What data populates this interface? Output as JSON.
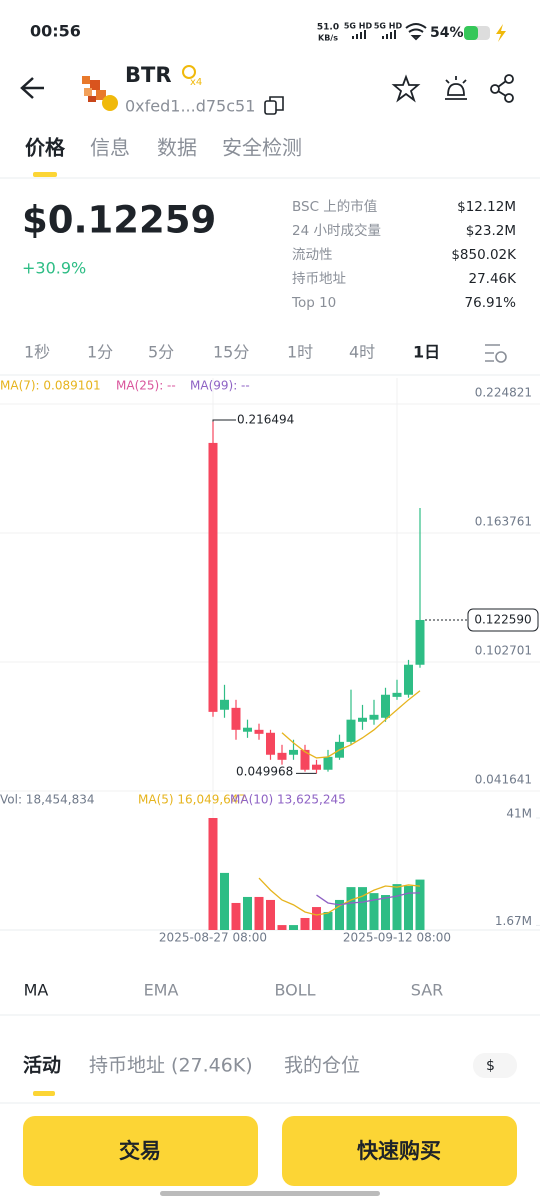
{
  "status_bar": {
    "time": "00:56",
    "net_speed": "51.0",
    "net_unit": "KB/s",
    "signal_1": "5G HD",
    "signal_2": "5G HD",
    "battery": "54%"
  },
  "header": {
    "name": "BTR",
    "badge": "x4",
    "address": "0xfed1...d75c51"
  },
  "tabs": [
    "价格",
    "信息",
    "数据",
    "安全检测"
  ],
  "price": {
    "value": "$0.12259",
    "change": "+30.9%"
  },
  "stats": [
    {
      "label": "BSC 上的市值",
      "value": "$12.12M"
    },
    {
      "label": "24 小时成交量",
      "value": "$23.2M"
    },
    {
      "label": "流动性",
      "value": "$850.02K"
    },
    {
      "label": "持币地址",
      "value": "27.46K"
    },
    {
      "label": "Top 10",
      "value": "76.91%"
    }
  ],
  "intervals": [
    "1秒",
    "1分",
    "5分",
    "15分",
    "1时",
    "4时",
    "1日"
  ],
  "chart_data": [
    {
      "type": "candlestick",
      "up_color": "#2ebd85",
      "down_color": "#f6465d",
      "categories": [
        "2025-08-27 08:00",
        null,
        null,
        null,
        null,
        null,
        null,
        null,
        null,
        null,
        null,
        null,
        null,
        null,
        null,
        null,
        "2025-09-12 08:00",
        null,
        null
      ],
      "open": [
        0.2064,
        0.0801,
        0.081,
        0.0697,
        0.0706,
        0.0692,
        0.0597,
        0.0588,
        0.0611,
        0.0541,
        0.0517,
        0.0574,
        0.0649,
        0.0744,
        0.0754,
        0.0763,
        0.0862,
        0.0872,
        0.1014
      ],
      "high": [
        0.216494,
        0.0919,
        0.0848,
        0.0754,
        0.0735,
        0.0706,
        0.0635,
        0.0659,
        0.0635,
        0.0564,
        0.0611,
        0.0683,
        0.0896,
        0.0824,
        0.0848,
        0.0905,
        0.0943,
        0.1037,
        0.1756
      ],
      "low": [
        0.0768,
        0.0763,
        0.0659,
        0.0668,
        0.0659,
        0.0564,
        0.0541,
        0.0564,
        0.0508,
        0.049968,
        0.0508,
        0.0564,
        0.0635,
        0.0706,
        0.073,
        0.0744,
        0.0848,
        0.0858,
        0.1
      ],
      "close": [
        0.0791,
        0.0848,
        0.0706,
        0.0716,
        0.0687,
        0.0588,
        0.0564,
        0.0611,
        0.0517,
        0.0517,
        0.0578,
        0.0649,
        0.0754,
        0.0763,
        0.0777,
        0.0872,
        0.0881,
        0.1014,
        0.12259
      ],
      "series": [
        {
          "name": "MA(7): 0.089101",
          "color": "#e6b41e",
          "values": [
            null,
            null,
            null,
            null,
            null,
            null,
            0.0692,
            0.0644,
            0.0602,
            0.0573,
            0.0578,
            0.0611,
            0.0635,
            0.0668,
            0.0706,
            0.0754,
            0.0801,
            0.0848,
            0.0891
          ]
        },
        {
          "name": "MA(25): --",
          "color": "#d9559c",
          "values": [
            null,
            null,
            null,
            null,
            null,
            null,
            null,
            null,
            null,
            null,
            null,
            null,
            null,
            null,
            null,
            null,
            null,
            null,
            null
          ]
        },
        {
          "name": "MA(99): --",
          "color": "#8e62c4",
          "values": [
            null,
            null,
            null,
            null,
            null,
            null,
            null,
            null,
            null,
            null,
            null,
            null,
            null,
            null,
            null,
            null,
            null,
            null,
            null
          ]
        }
      ],
      "ylim": [
        0.041641,
        0.224821
      ],
      "yticks": [
        0.224821,
        0.163761,
        0.102701,
        0.041641
      ],
      "high_label": "0.216494",
      "low_label": "0.049968",
      "last_label": "0.122590"
    },
    {
      "type": "bar",
      "label": "Vol: 18,454,834",
      "values": [
        41,
        20.9,
        9.9,
        12.1,
        12.1,
        11.0,
        1.8,
        1.8,
        4.4,
        8.4,
        6.6,
        11.0,
        15.7,
        15.7,
        13.5,
        12.8,
        16.8,
        16.1,
        18.45
      ],
      "series": [
        {
          "name": "MA(5) 16,049,647",
          "color": "#e6b41e",
          "values": [
            null,
            null,
            null,
            null,
            19.0,
            14.6,
            11.0,
            9.2,
            6.6,
            5.5,
            6.2,
            8.8,
            11.0,
            12.4,
            14.6,
            16.1,
            15.7,
            16.5,
            16.05
          ]
        },
        {
          "name": "MA(10) 13,625,245",
          "color": "#8e62c4",
          "values": [
            null,
            null,
            null,
            null,
            null,
            null,
            null,
            null,
            null,
            12.8,
            9.9,
            9.2,
            9.9,
            10.2,
            11.0,
            11.7,
            12.4,
            13.5,
            13.6
          ]
        }
      ],
      "ylim": [
        0,
        41
      ],
      "yticks": [
        {
          "value": 41,
          "label": "41M"
        },
        {
          "value": 1.67,
          "label": "1.67M"
        }
      ]
    }
  ],
  "indicators": [
    "MA",
    "EMA",
    "BOLL",
    "SAR"
  ],
  "activity_tabs": [
    "活动",
    "持币地址 (27.46K)",
    "我的仓位"
  ],
  "currency": "$",
  "buttons": [
    "交易",
    "快速购买"
  ]
}
